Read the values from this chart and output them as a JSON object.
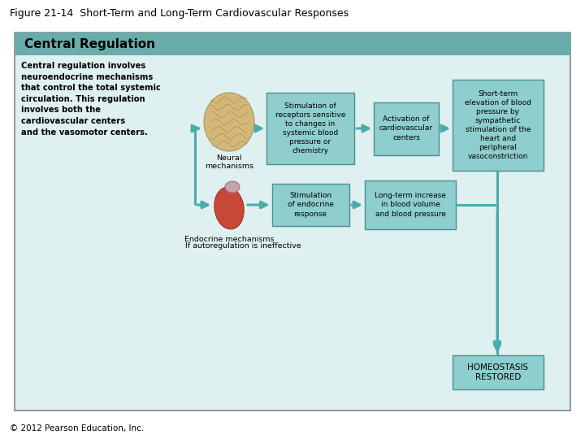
{
  "title": "Figure 21-14  Short-Term and Long-Term Cardiovascular Responses",
  "title_fontsize": 9,
  "copyright": "© 2012 Pearson Education, Inc.",
  "outer_bg": "#ffffff",
  "panel_bg": "#dff0f0",
  "header_bg": "#6aacac",
  "panel_border": "#888888",
  "header_text": "Central Regulation",
  "header_fontsize": 11,
  "box_bg": "#8ecece",
  "box_border": "#4a9090",
  "homeostasis_bg": "#8ecece",
  "arrow_color": "#4aacac",
  "desc_text": "Central regulation involves\nneuroendocrine mechanisms\nthat control the total systemic\ncirculation. This regulation\ninvolves both the\ncardiovascular centers\nand the vasomotor centers.",
  "autoregulation_text": "If autoregulation is ineffective",
  "neural_label": "Neural\nmechanisms",
  "endocrine_label": "Endocrine mechanisms",
  "box1_text": "Stimulation of\nreceptors sensitive\nto changes in\nsystemic blood\npressure or\nchemistry",
  "box2_text": "Activation of\ncardiovascular\ncenters",
  "box3_text": "Short-term\nelevation of blood\npressure by\nsympathetic\nstimulation of the\nheart and\nperipheral\nvasoconstriction",
  "box4_text": "Stimulation\nof endocrine\nresponse",
  "box5_text": "Long-term increase\nin blood volume\nand blood pressure",
  "homeostasis_text": "HOMEOSTASIS\nRESTORED"
}
